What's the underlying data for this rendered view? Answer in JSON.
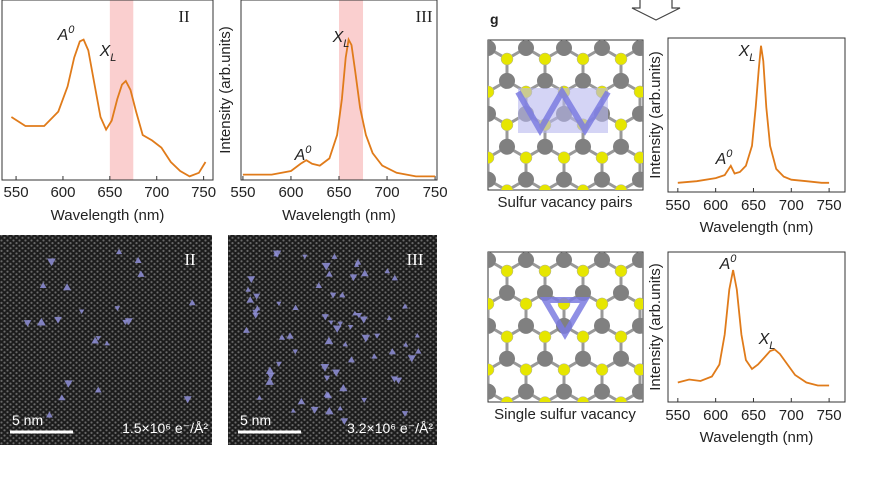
{
  "chart_data": [
    {
      "type": "line",
      "panel_label": "II",
      "xlabel": "Wavelength (nm)",
      "color": "#e07b1a",
      "highlight": [
        650,
        675
      ],
      "xlim": [
        535,
        760
      ],
      "ylim": [
        0,
        1
      ],
      "xticks": [
        550,
        600,
        650,
        700,
        750
      ],
      "x": [
        545,
        560,
        580,
        595,
        605,
        612,
        618,
        622,
        627,
        633,
        640,
        646,
        652,
        658,
        663,
        667,
        672,
        678,
        685,
        695,
        705,
        715,
        725,
        735,
        745,
        752
      ],
      "values": [
        0.35,
        0.3,
        0.3,
        0.38,
        0.52,
        0.68,
        0.77,
        0.78,
        0.72,
        0.55,
        0.35,
        0.28,
        0.33,
        0.45,
        0.53,
        0.55,
        0.5,
        0.38,
        0.25,
        0.22,
        0.18,
        0.1,
        0.05,
        0.02,
        0.04,
        0.1
      ],
      "annotations": [
        {
          "text": "A",
          "sup": "0"
        },
        {
          "text": "X",
          "sub": "L"
        }
      ]
    },
    {
      "type": "line",
      "panel_label": "III",
      "xlabel": "Wavelength (nm)",
      "ylabel": "Intensity (arb.units)",
      "color": "#e07b1a",
      "highlight": [
        650,
        675
      ],
      "xlim": [
        548,
        752
      ],
      "ylim": [
        0,
        1
      ],
      "xticks": [
        550,
        600,
        650,
        700,
        750
      ],
      "x": [
        550,
        580,
        600,
        610,
        616,
        622,
        630,
        640,
        648,
        653,
        657,
        660,
        663,
        667,
        672,
        678,
        685,
        695,
        710,
        730,
        750
      ],
      "values": [
        0.03,
        0.03,
        0.05,
        0.09,
        0.11,
        0.09,
        0.08,
        0.12,
        0.25,
        0.45,
        0.68,
        0.78,
        0.75,
        0.6,
        0.4,
        0.25,
        0.15,
        0.08,
        0.04,
        0.02,
        0.02
      ],
      "annotations": [
        {
          "text": "X",
          "sub": "L"
        },
        {
          "text": "A",
          "sup": "0"
        }
      ]
    },
    {
      "type": "line",
      "xlabel": "Wavelength (nm)",
      "ylabel": "Intensity (arb.units)",
      "color": "#e07b1a",
      "xlim": [
        537,
        771
      ],
      "ylim": [
        0,
        1
      ],
      "xticks": [
        550,
        600,
        650,
        700,
        750
      ],
      "x": [
        550,
        575,
        600,
        612,
        620,
        625,
        632,
        640,
        648,
        653,
        657,
        660,
        663,
        667,
        672,
        680,
        690,
        700,
        720,
        740,
        750
      ],
      "values": [
        0.06,
        0.07,
        0.09,
        0.11,
        0.17,
        0.12,
        0.13,
        0.17,
        0.3,
        0.55,
        0.8,
        0.95,
        0.85,
        0.55,
        0.3,
        0.15,
        0.1,
        0.08,
        0.07,
        0.06,
        0.06
      ],
      "annotations": [
        {
          "text": "X",
          "sub": "L"
        },
        {
          "text": "A",
          "sup": "0"
        }
      ]
    },
    {
      "type": "line",
      "xlabel": "Wavelength (nm)",
      "ylabel": "Intensity (arb.units)",
      "color": "#e07b1a",
      "xlim": [
        537,
        771
      ],
      "ylim": [
        0,
        1
      ],
      "xticks": [
        550,
        600,
        650,
        700,
        750
      ],
      "x": [
        550,
        565,
        580,
        595,
        605,
        612,
        618,
        623,
        628,
        634,
        640,
        648,
        656,
        665,
        672,
        678,
        685,
        695,
        705,
        720,
        735,
        750
      ],
      "values": [
        0.13,
        0.15,
        0.14,
        0.17,
        0.25,
        0.45,
        0.75,
        0.88,
        0.75,
        0.45,
        0.28,
        0.22,
        0.25,
        0.3,
        0.34,
        0.35,
        0.32,
        0.25,
        0.18,
        0.13,
        0.11,
        0.11
      ],
      "annotations": [
        {
          "text": "A",
          "sup": "0"
        },
        {
          "text": "X",
          "sub": "L"
        }
      ]
    }
  ],
  "images": [
    {
      "label": "II",
      "scale": "5 nm",
      "dose": "1.5×10⁶ e⁻/Å²"
    },
    {
      "label": "III",
      "scale": "5 nm",
      "dose": "3.2×10⁶ e⁻/Å²"
    }
  ],
  "models": {
    "panel_label": "g",
    "captions": [
      "Sulfur vacancy pairs",
      "Single sulfur vacancy"
    ]
  }
}
